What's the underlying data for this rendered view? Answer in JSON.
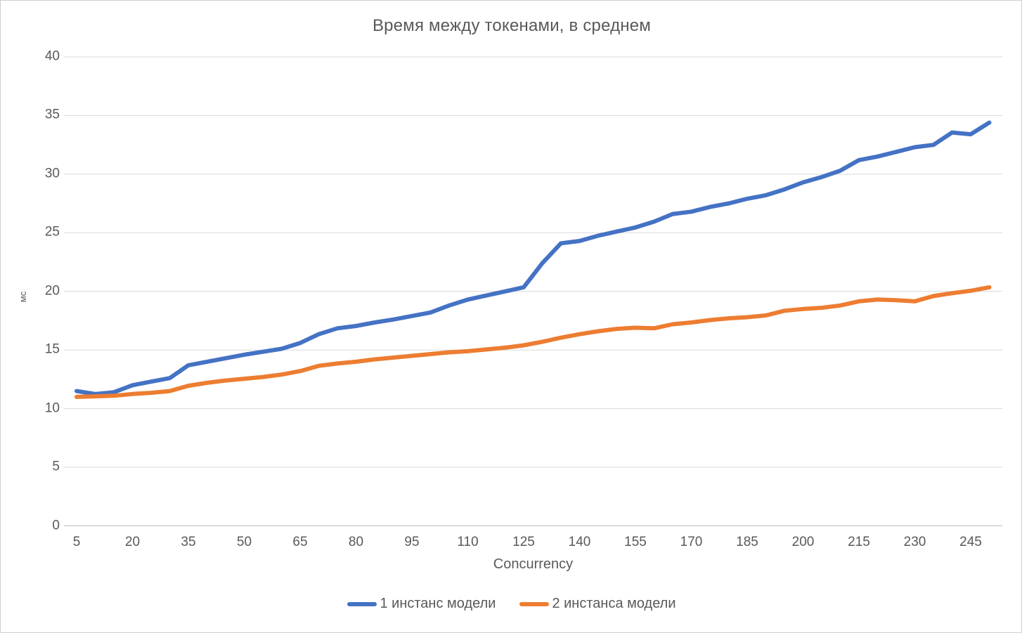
{
  "chart_data": {
    "type": "line",
    "title": "Время между токенами, в среднем",
    "xlabel": "Concurrency",
    "ylabel": "мс",
    "x": [
      5,
      10,
      15,
      20,
      25,
      30,
      35,
      40,
      45,
      50,
      55,
      60,
      65,
      70,
      75,
      80,
      85,
      90,
      95,
      100,
      105,
      110,
      115,
      120,
      125,
      130,
      135,
      140,
      145,
      150,
      155,
      160,
      165,
      170,
      175,
      180,
      185,
      190,
      195,
      200,
      205,
      210,
      215,
      220,
      225,
      230,
      235,
      240,
      245,
      250
    ],
    "x_tick_labels": [
      "5",
      "20",
      "35",
      "50",
      "65",
      "80",
      "95",
      "110",
      "125",
      "140",
      "155",
      "170",
      "185",
      "200",
      "215",
      "230",
      "245"
    ],
    "y_ticks": [
      "0",
      "5",
      "10",
      "15",
      "20",
      "25",
      "30",
      "35",
      "40"
    ],
    "ylim": [
      0,
      40
    ],
    "grid": "horizontal",
    "legend_position": "bottom",
    "series": [
      {
        "name": "1 инстанс модели",
        "color": "#4472C4",
        "values": [
          11.5,
          11.25,
          11.4,
          12.0,
          12.3,
          12.6,
          13.7,
          14.0,
          14.3,
          14.6,
          14.85,
          15.1,
          15.6,
          16.35,
          16.85,
          17.05,
          17.35,
          17.6,
          17.9,
          18.2,
          18.8,
          19.3,
          19.65,
          20.0,
          20.35,
          22.4,
          24.1,
          24.3,
          24.75,
          25.1,
          25.45,
          25.95,
          26.6,
          26.8,
          27.2,
          27.5,
          27.9,
          28.2,
          28.7,
          29.3,
          29.75,
          30.3,
          31.2,
          31.5,
          31.9,
          32.3,
          32.5,
          33.55,
          33.4,
          34.4
        ]
      },
      {
        "name": "2 инстанса модели",
        "color": "#ED7D31",
        "values": [
          11.0,
          11.05,
          11.1,
          11.25,
          11.35,
          11.5,
          11.95,
          12.2,
          12.4,
          12.55,
          12.7,
          12.9,
          13.2,
          13.65,
          13.85,
          14.0,
          14.2,
          14.35,
          14.5,
          14.65,
          14.8,
          14.9,
          15.05,
          15.2,
          15.4,
          15.7,
          16.05,
          16.35,
          16.6,
          16.8,
          16.9,
          16.85,
          17.2,
          17.35,
          17.55,
          17.7,
          17.8,
          17.95,
          18.35,
          18.5,
          18.6,
          18.8,
          19.15,
          19.3,
          19.25,
          19.15,
          19.6,
          19.85,
          20.05,
          20.35
        ]
      }
    ]
  },
  "colors": {
    "text": "#595959",
    "gridline": "#D9D9D9",
    "axis_line": "#BFBFBF",
    "background": "#FFFFFF",
    "border": "#D0D0D0"
  }
}
